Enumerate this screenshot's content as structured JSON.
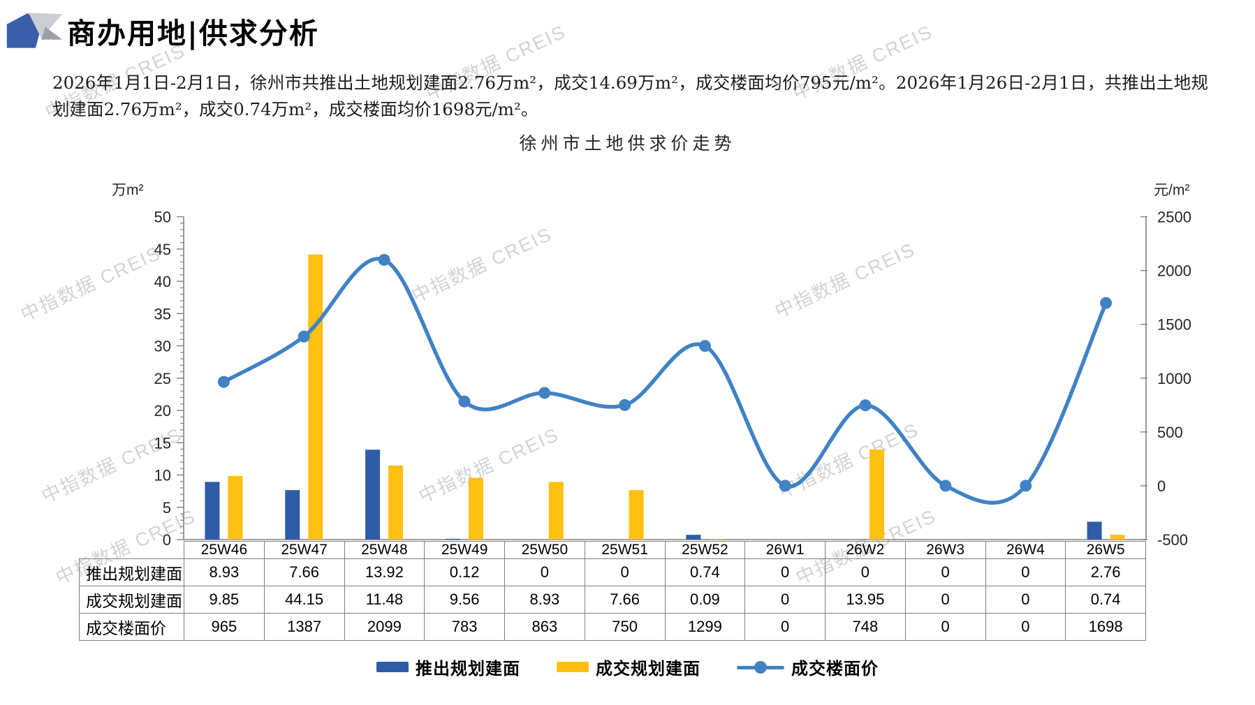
{
  "page": {
    "title": "商办用地|供求分析",
    "summary": "2026年1月1日-2月1日，徐州市共推出土地规划建面2.76万m²，成交14.69万m²，成交楼面均价795元/m²。2026年1月26日-2月1日，共推出土地规划建面2.76万m²，成交0.74万m²，成交楼面均价1698元/m²。",
    "watermark": "中指数据 CREIS"
  },
  "chart_data": {
    "type": "bar+line combo",
    "title": "徐州市土地供求价走势",
    "categories": [
      "25W46",
      "25W47",
      "25W48",
      "25W49",
      "25W50",
      "25W51",
      "25W52",
      "26W1",
      "26W2",
      "26W3",
      "26W4",
      "26W5"
    ],
    "series": [
      {
        "name": "推出规划建面",
        "type": "bar",
        "axis": "left",
        "color": "#2F5CA8",
        "values": [
          8.93,
          7.66,
          13.92,
          0.12,
          0,
          0,
          0.74,
          0,
          0,
          0,
          0,
          2.76
        ]
      },
      {
        "name": "成交规划建面",
        "type": "bar",
        "axis": "left",
        "color": "#FFC013",
        "values": [
          9.85,
          44.15,
          11.48,
          9.56,
          8.93,
          7.66,
          0.09,
          0,
          13.95,
          0,
          0,
          0.74
        ]
      },
      {
        "name": "成交楼面价",
        "type": "line",
        "axis": "right",
        "color": "#4182C4",
        "values": [
          965,
          1387,
          2099,
          783,
          863,
          750,
          1299,
          0,
          748,
          0,
          0,
          1698
        ]
      }
    ],
    "left_axis": {
      "unit": "万m²",
      "min": 0,
      "max": 50,
      "step": 5
    },
    "right_axis": {
      "unit": "元/m²",
      "min": -500,
      "max": 2500,
      "step": 500
    },
    "grid": false,
    "legend_position": "bottom"
  },
  "table": {
    "header": [
      "25W46",
      "25W47",
      "25W48",
      "25W49",
      "25W50",
      "25W51",
      "25W52",
      "26W1",
      "26W2",
      "26W3",
      "26W4",
      "26W5"
    ],
    "rows": [
      {
        "label": "推出规划建面",
        "values": [
          "8.93",
          "7.66",
          "13.92",
          "0.12",
          "0",
          "0",
          "0.74",
          "0",
          "0",
          "0",
          "0",
          "2.76"
        ]
      },
      {
        "label": "成交规划建面",
        "values": [
          "9.85",
          "44.15",
          "11.48",
          "9.56",
          "8.93",
          "7.66",
          "0.09",
          "0",
          "13.95",
          "0",
          "0",
          "0.74"
        ]
      },
      {
        "label": "成交楼面价",
        "values": [
          "965",
          "1387",
          "2099",
          "783",
          "863",
          "750",
          "1299",
          "0",
          "748",
          "0",
          "0",
          "1698"
        ]
      }
    ]
  }
}
